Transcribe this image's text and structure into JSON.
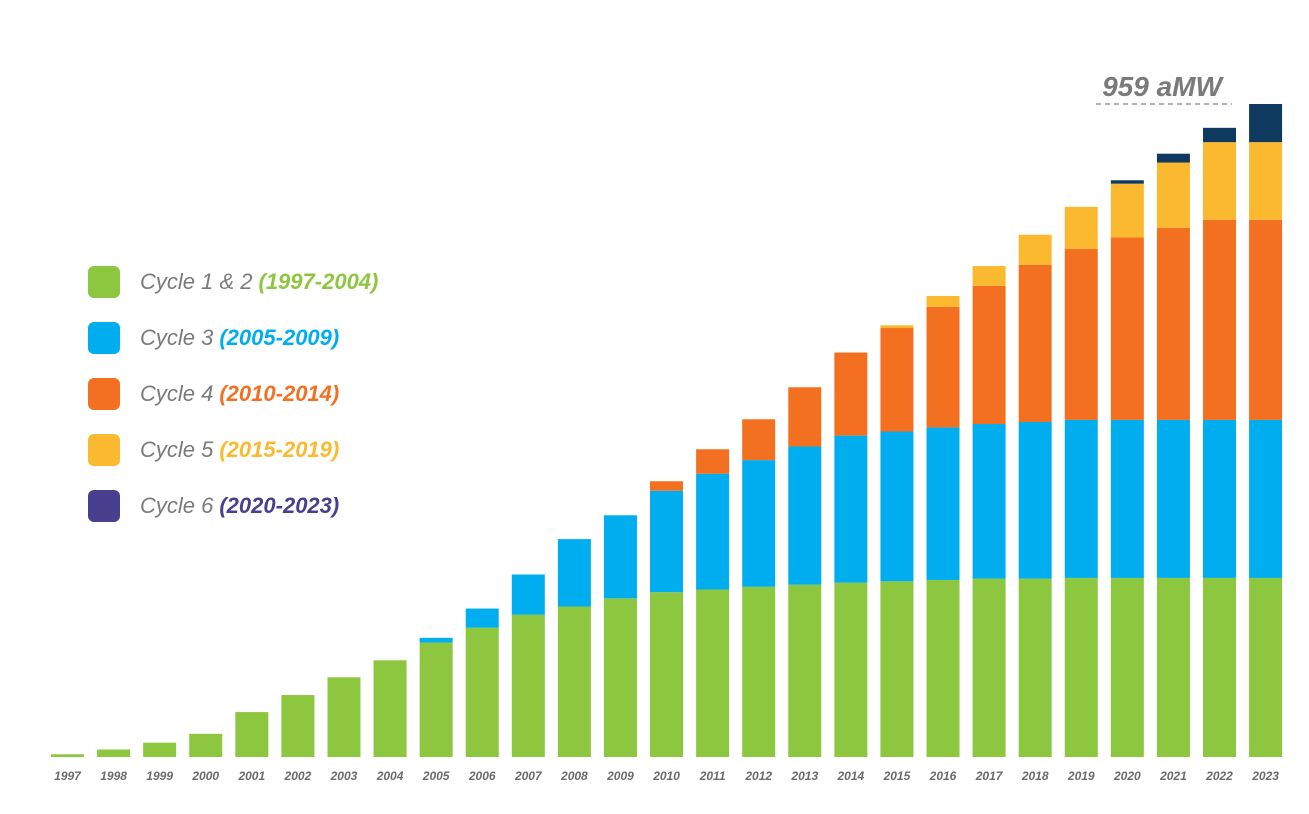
{
  "chart_data": {
    "type": "bar",
    "stacked": true,
    "categories": [
      "1997",
      "1998",
      "1999",
      "2000",
      "2001",
      "2002",
      "2003",
      "2004",
      "2005",
      "2006",
      "2007",
      "2008",
      "2009",
      "2010",
      "2011",
      "2012",
      "2013",
      "2014",
      "2015",
      "2016",
      "2017",
      "2018",
      "2019",
      "2020",
      "2021",
      "2022",
      "2023"
    ],
    "series": [
      {
        "name": "Cycle 1 & 2",
        "range": "(1997-2004)",
        "color": "#8dc63f",
        "values": [
          4,
          11,
          21,
          34,
          66,
          91,
          117,
          142,
          168,
          190,
          209,
          221,
          233,
          242,
          246,
          250,
          253,
          256,
          258,
          260,
          262,
          262,
          263,
          263,
          263,
          263,
          263
        ]
      },
      {
        "name": "Cycle 3",
        "range": "(2005-2009)",
        "color": "#00aeef",
        "values": [
          0,
          0,
          0,
          0,
          0,
          0,
          0,
          0,
          7,
          28,
          59,
          99,
          122,
          149,
          170,
          186,
          203,
          216,
          220,
          224,
          227,
          230,
          232,
          232,
          232,
          232,
          232
        ]
      },
      {
        "name": "Cycle 4",
        "range": "(2010-2014)",
        "color": "#f37021",
        "values": [
          0,
          0,
          0,
          0,
          0,
          0,
          0,
          0,
          0,
          0,
          0,
          0,
          0,
          14,
          36,
          60,
          87,
          122,
          152,
          177,
          203,
          231,
          251,
          268,
          282,
          294,
          294
        ]
      },
      {
        "name": "Cycle 5",
        "range": "(2015-2019)",
        "color": "#fbb92f",
        "values": [
          0,
          0,
          0,
          0,
          0,
          0,
          0,
          0,
          0,
          0,
          0,
          0,
          0,
          0,
          0,
          0,
          0,
          0,
          4,
          16,
          29,
          44,
          62,
          79,
          96,
          114,
          114
        ]
      },
      {
        "name": "Cycle 6",
        "range": "(2020-2023)",
        "color": "#483f8e",
        "bar_color": "#0f3a60",
        "values": [
          0,
          0,
          0,
          0,
          0,
          0,
          0,
          0,
          0,
          0,
          0,
          0,
          0,
          0,
          0,
          0,
          0,
          0,
          0,
          0,
          0,
          0,
          0,
          5,
          13,
          21,
          56
        ]
      }
    ],
    "annotation": "959 aMW",
    "ylim": [
      0,
      959
    ],
    "title": "",
    "xlabel": "",
    "ylabel": "",
    "grid": false,
    "legend_position": "left"
  }
}
